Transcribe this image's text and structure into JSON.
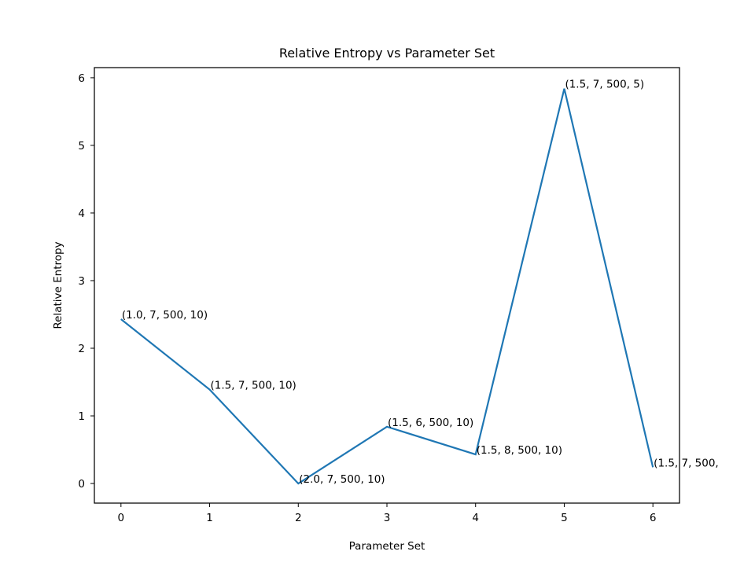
{
  "chart_data": {
    "type": "line",
    "title": "Relative Entropy vs Parameter Set",
    "xlabel": "Parameter Set",
    "ylabel": "Relative Entropy",
    "xlim": [
      -0.3,
      6.3
    ],
    "ylim": [
      -0.29,
      6.15
    ],
    "xticks": [
      0,
      1,
      2,
      3,
      4,
      5,
      6
    ],
    "yticks": [
      0,
      1,
      2,
      3,
      4,
      5,
      6
    ],
    "grid": false,
    "line_color": "#1f77b4",
    "x": [
      0,
      1,
      2,
      3,
      4,
      5,
      6
    ],
    "y": [
      2.43,
      1.39,
      0.0,
      0.84,
      0.43,
      5.84,
      0.24
    ],
    "point_labels": [
      "(1.0, 7, 500, 10)",
      "(1.5, 7, 500, 10)",
      "(2.0, 7, 500, 10)",
      "(1.5, 6, 500, 10)",
      "(1.5, 8, 500, 10)",
      "(1.5, 7, 500, 5)",
      "(1.5, 7, 500,"
    ]
  }
}
